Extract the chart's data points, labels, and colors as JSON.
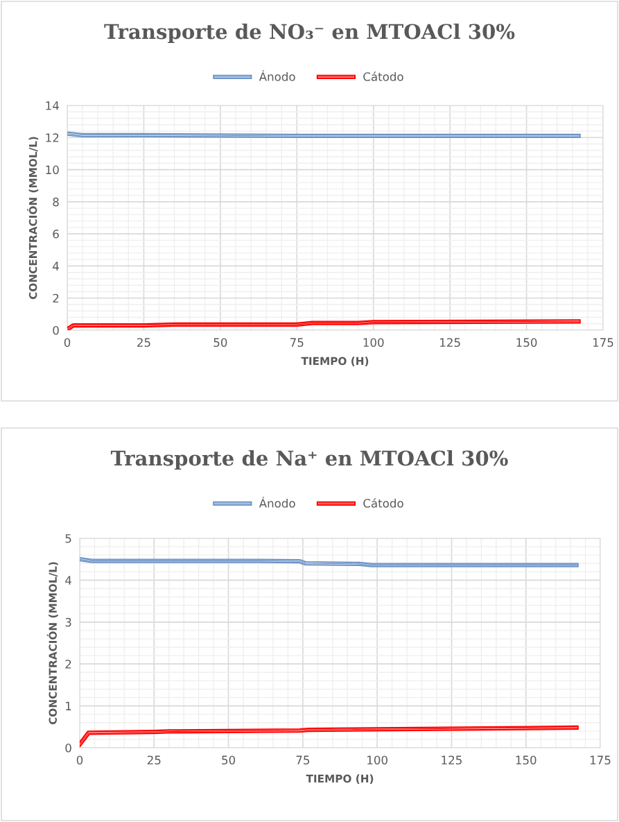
{
  "chart_data": [
    {
      "type": "line",
      "title": "Transporte de NO₃⁻ en MTOACl 30%",
      "xlabel": "TIEMPO (H)",
      "ylabel": "CONCENTRACIÓN (MMOL/L)",
      "xlim": [
        0,
        175
      ],
      "xticks": [
        0,
        25,
        50,
        75,
        100,
        125,
        150,
        175
      ],
      "ylim": [
        0,
        14
      ],
      "yticks": [
        0,
        2,
        4,
        6,
        8,
        10,
        12,
        14
      ],
      "grid": true,
      "legend": "top",
      "marker": "none",
      "series": [
        {
          "name": "Ánodo",
          "color": "#6f95c8",
          "x": [
            0,
            5,
            25,
            75,
            167
          ],
          "values": [
            12.25,
            12.15,
            12.15,
            12.1,
            12.1
          ]
        },
        {
          "name": "Cátodo",
          "color": "#ff0000",
          "x": [
            0,
            2,
            25,
            35,
            75,
            80,
            95,
            100,
            167
          ],
          "values": [
            0.05,
            0.3,
            0.3,
            0.35,
            0.35,
            0.45,
            0.45,
            0.5,
            0.55
          ]
        }
      ]
    },
    {
      "type": "line",
      "title": "Transporte de Na⁺ en MTOACl 30%",
      "xlabel": "TIEMPO (H)",
      "ylabel": "CONCENTRACIÓN (MMOL/L)",
      "xlim": [
        0,
        175
      ],
      "xticks": [
        0,
        25,
        50,
        75,
        100,
        125,
        150,
        175
      ],
      "ylim": [
        0,
        5
      ],
      "yticks": [
        0,
        1,
        2,
        3,
        4,
        5
      ],
      "grid": true,
      "legend": "top",
      "marker": "none",
      "series": [
        {
          "name": "Ánodo",
          "color": "#6f95c8",
          "x": [
            0,
            4,
            60,
            74,
            76,
            94,
            98,
            167
          ],
          "values": [
            4.5,
            4.46,
            4.46,
            4.45,
            4.4,
            4.39,
            4.36,
            4.36
          ]
        },
        {
          "name": "Cátodo",
          "color": "#ff0000",
          "x": [
            0,
            3,
            25,
            30,
            74,
            77,
            167
          ],
          "values": [
            0.08,
            0.36,
            0.38,
            0.39,
            0.41,
            0.43,
            0.48
          ]
        }
      ]
    }
  ]
}
